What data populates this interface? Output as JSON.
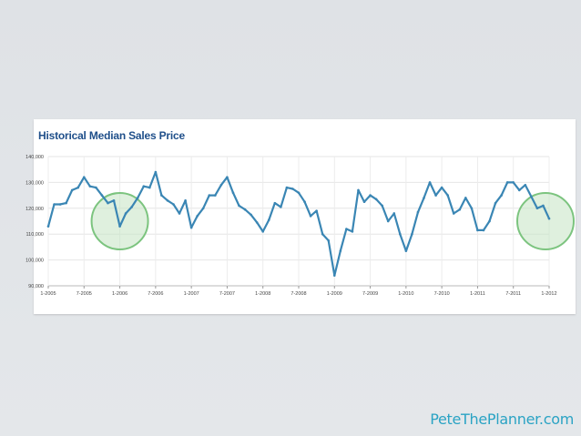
{
  "footer": {
    "credit": "PeteThePlanner.com"
  },
  "colors": {
    "line": "#3a86b4",
    "circle_fill": "#c5e3c3",
    "circle_stroke": "#7cc47f",
    "title": "#1f4f8a",
    "credit": "#2aa3c4"
  },
  "chart_data": {
    "type": "line",
    "title": "Historical Median Sales Price",
    "xlabel": "",
    "ylabel": "",
    "ylim": [
      90000,
      140000
    ],
    "grid": true,
    "y_ticks": [
      90000,
      100000,
      110000,
      120000,
      130000,
      140000
    ],
    "y_tick_labels": [
      "90,000",
      "100,000",
      "110,000",
      "120,000",
      "130,000",
      "140,000"
    ],
    "x_tick_labels": [
      "1-2005",
      "7-2005",
      "1-2006",
      "7-2006",
      "1-2007",
      "7-2007",
      "1-2008",
      "7-2008",
      "1-2009",
      "7-2009",
      "1-2010",
      "7-2010",
      "1-2011",
      "7-2011",
      "1-2012"
    ],
    "x_start": "1-2005",
    "x_end": "1-2012",
    "series": [
      {
        "values": [
          113000,
          121500,
          121500,
          122000,
          127000,
          128000,
          132000,
          128500,
          128000,
          125000,
          122000,
          123000,
          113000,
          118000,
          120500,
          124000,
          128500,
          128000,
          134000,
          125000,
          123000,
          121500,
          118000,
          123000,
          112500,
          117000,
          120000,
          125000,
          125000,
          129000,
          132000,
          126000,
          121000,
          119500,
          117500,
          114500,
          111000,
          115500,
          122000,
          120500,
          128000,
          127500,
          126000,
          122500,
          117000,
          119000,
          110000,
          107500,
          94000,
          103500,
          112000,
          111000,
          127000,
          122500,
          125000,
          123500,
          121000,
          115000,
          118000,
          110000,
          103500,
          110000,
          118500,
          124000,
          130000,
          125000,
          128000,
          125000,
          118000,
          119500,
          124000,
          120000,
          111500,
          111500,
          115000,
          122000,
          125000,
          130000,
          130000,
          127000,
          129000,
          124500,
          120000,
          121000,
          116000
        ]
      }
    ],
    "annotations": [
      {
        "type": "circle",
        "at": "1-2006"
      },
      {
        "type": "circle",
        "at": "1-2012"
      }
    ]
  }
}
